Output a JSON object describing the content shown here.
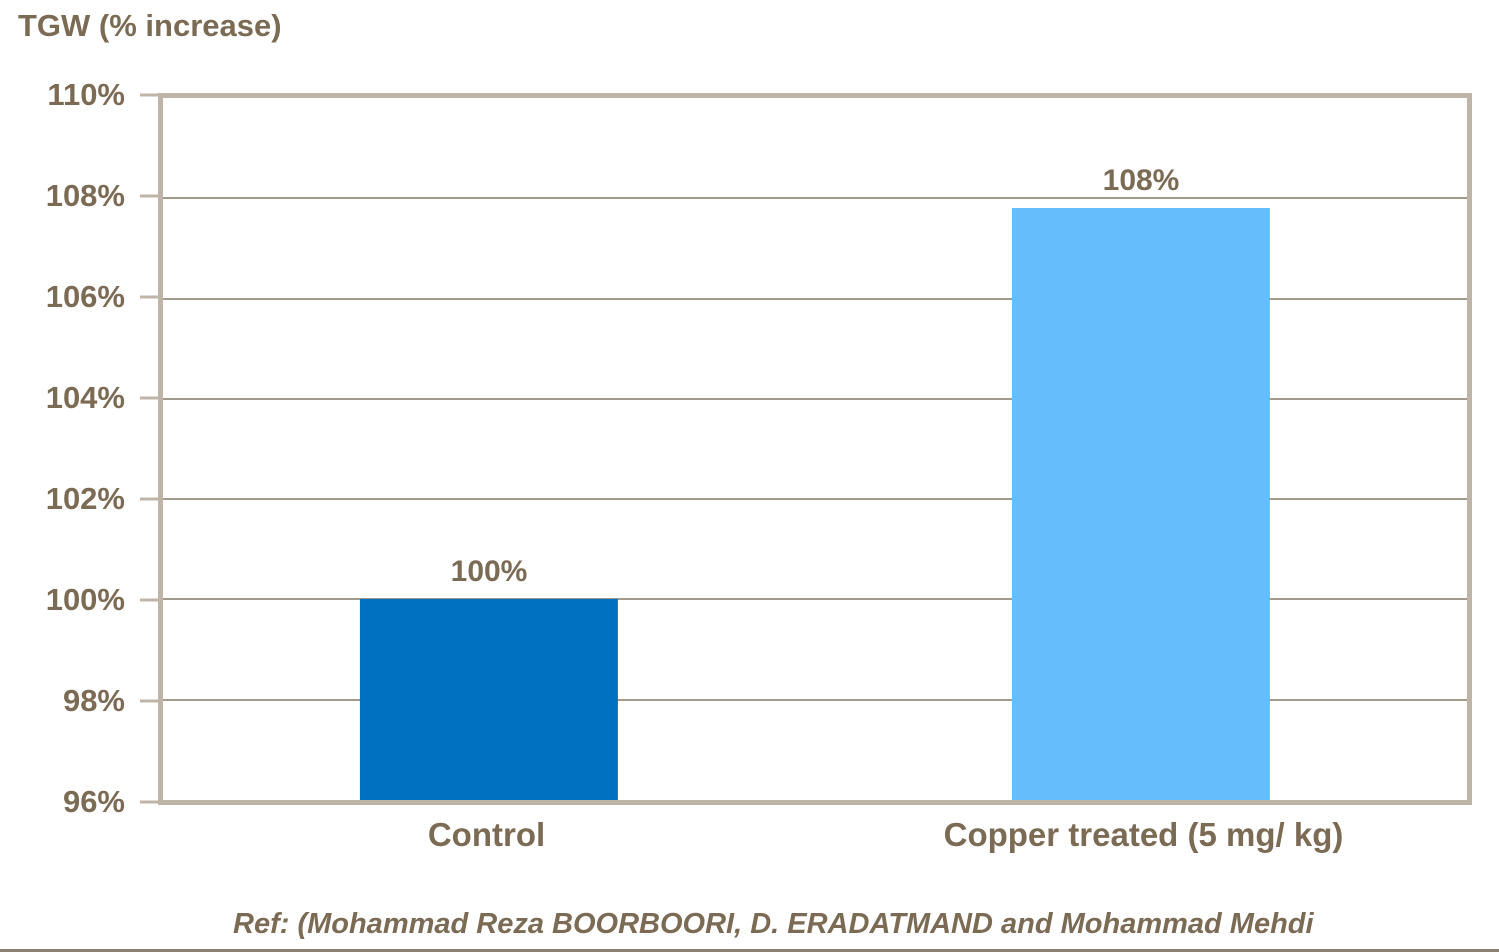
{
  "title": "TGW (% increase)",
  "reference": "Ref: (Mohammad Reza BOORBOORI, D. ERADATMAND and Mohammad Mehdi",
  "colors": {
    "background": "#FFFFFF",
    "text": "#7C6B54",
    "axis_border": "#BEB5A8",
    "gridline": "#A29A8D",
    "bottom_rule": "#8A8173",
    "bar_control": "#0070C0",
    "bar_copper": "#65BDFB"
  },
  "chart_data": {
    "type": "bar",
    "title": "TGW (% increase)",
    "categories": [
      "Control",
      "Copper treated (5 mg/ kg)"
    ],
    "values": [
      100,
      107.8
    ],
    "data_labels": [
      "100%",
      "108%"
    ],
    "bar_colors": [
      "#0070C0",
      "#65BDFB"
    ],
    "xlabel": "",
    "ylabel": "TGW (% increase)",
    "ylim": [
      96,
      110
    ],
    "y_ticks": [
      110,
      108,
      106,
      104,
      102,
      100,
      98,
      96
    ],
    "y_tick_labels": [
      "110%",
      "108%",
      "106%",
      "104%",
      "102%",
      "100%",
      "98%",
      "96%"
    ],
    "grid": true,
    "legend": false,
    "annotation": "Ref: (Mohammad Reza BOORBOORI, D. ERADATMAND and Mohammad Mehdi"
  }
}
